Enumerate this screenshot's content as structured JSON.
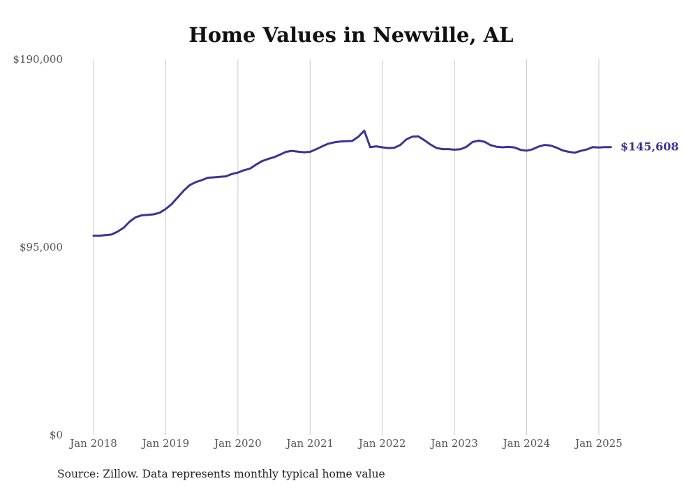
{
  "chart_data": {
    "type": "line",
    "title": "Home Values in Newville, AL",
    "source": "Source: Zillow. Data represents monthly typical home value",
    "ylim": [
      0,
      190000
    ],
    "y_ticks": [
      {
        "value": 0,
        "label": "$0"
      },
      {
        "value": 95000,
        "label": "$95,000"
      },
      {
        "value": 190000,
        "label": "$190,000"
      }
    ],
    "x_ticks": [
      {
        "value": 2018,
        "label": "Jan 2018"
      },
      {
        "value": 2019,
        "label": "Jan 2019"
      },
      {
        "value": 2020,
        "label": "Jan 2020"
      },
      {
        "value": 2021,
        "label": "Jan 2021"
      },
      {
        "value": 2022,
        "label": "Jan 2022"
      },
      {
        "value": 2023,
        "label": "Jan 2023"
      },
      {
        "value": 2024,
        "label": "Jan 2024"
      },
      {
        "value": 2025,
        "label": "Jan 2025"
      }
    ],
    "xlim": [
      2018,
      2025.167
    ],
    "grid": "vertical",
    "line_color": "#3b3494",
    "end_label": "$145,608",
    "x": [
      2018.0,
      2018.083,
      2018.167,
      2018.25,
      2018.333,
      2018.417,
      2018.5,
      2018.583,
      2018.667,
      2018.75,
      2018.833,
      2018.917,
      2019.0,
      2019.083,
      2019.167,
      2019.25,
      2019.333,
      2019.417,
      2019.5,
      2019.583,
      2019.667,
      2019.75,
      2019.833,
      2019.917,
      2020.0,
      2020.083,
      2020.167,
      2020.25,
      2020.333,
      2020.417,
      2020.5,
      2020.583,
      2020.667,
      2020.75,
      2020.833,
      2020.917,
      2021.0,
      2021.083,
      2021.167,
      2021.25,
      2021.333,
      2021.417,
      2021.5,
      2021.583,
      2021.667,
      2021.75,
      2021.833,
      2021.917,
      2022.0,
      2022.083,
      2022.167,
      2022.25,
      2022.333,
      2022.417,
      2022.5,
      2022.583,
      2022.667,
      2022.75,
      2022.833,
      2022.917,
      2023.0,
      2023.083,
      2023.167,
      2023.25,
      2023.333,
      2023.417,
      2023.5,
      2023.583,
      2023.667,
      2023.75,
      2023.833,
      2023.917,
      2024.0,
      2024.083,
      2024.167,
      2024.25,
      2024.333,
      2024.417,
      2024.5,
      2024.583,
      2024.667,
      2024.75,
      2024.833,
      2024.917,
      2025.0,
      2025.083,
      2025.167
    ],
    "values": [
      100800,
      100800,
      101100,
      101400,
      102800,
      104800,
      107900,
      110100,
      111100,
      111300,
      111600,
      112400,
      114300,
      116800,
      120200,
      123600,
      126400,
      127900,
      128900,
      130100,
      130300,
      130600,
      130800,
      132000,
      132700,
      133900,
      134700,
      136700,
      138500,
      139600,
      140500,
      141800,
      143200,
      143700,
      143300,
      143000,
      143200,
      144500,
      146000,
      147300,
      148000,
      148400,
      148600,
      148700,
      150800,
      153900,
      145600,
      146000,
      145500,
      145100,
      145300,
      146700,
      149500,
      150900,
      151000,
      149100,
      146900,
      145200,
      144600,
      144600,
      144300,
      144500,
      145800,
      148200,
      148900,
      148300,
      146600,
      145800,
      145500,
      145700,
      145400,
      144200,
      143800,
      144500,
      145900,
      146700,
      146400,
      145300,
      143900,
      143200,
      142800,
      143700,
      144400,
      145600,
      145400,
      145600,
      145608
    ]
  }
}
